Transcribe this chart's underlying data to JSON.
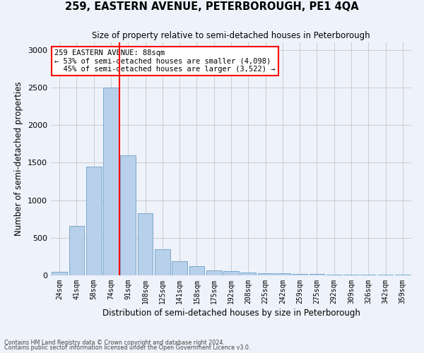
{
  "title": "259, EASTERN AVENUE, PETERBOROUGH, PE1 4QA",
  "subtitle": "Size of property relative to semi-detached houses in Peterborough",
  "xlabel": "Distribution of semi-detached houses by size in Peterborough",
  "ylabel": "Number of semi-detached properties",
  "categories": [
    "24sqm",
    "41sqm",
    "58sqm",
    "74sqm",
    "91sqm",
    "108sqm",
    "125sqm",
    "141sqm",
    "158sqm",
    "175sqm",
    "192sqm",
    "208sqm",
    "225sqm",
    "242sqm",
    "259sqm",
    "275sqm",
    "292sqm",
    "309sqm",
    "326sqm",
    "342sqm",
    "359sqm"
  ],
  "values": [
    50,
    660,
    1450,
    2500,
    1600,
    830,
    350,
    185,
    120,
    65,
    55,
    40,
    30,
    25,
    20,
    15,
    12,
    10,
    8,
    5,
    5
  ],
  "bar_color": "#b8d0ea",
  "bar_edgecolor": "#6ca0c8",
  "property_label": "259 EASTERN AVENUE: 88sqm",
  "pct_smaller": 53,
  "pct_smaller_count": 4098,
  "pct_larger": 45,
  "pct_larger_count": 3522,
  "vline_color": "red",
  "ylim": [
    0,
    3100
  ],
  "yticks": [
    0,
    500,
    1000,
    1500,
    2000,
    2500,
    3000
  ],
  "grid_color": "#cccccc",
  "bg_color": "#eef2fa",
  "footer1": "Contains HM Land Registry data © Crown copyright and database right 2024.",
  "footer2": "Contains public sector information licensed under the Open Government Licence v3.0."
}
